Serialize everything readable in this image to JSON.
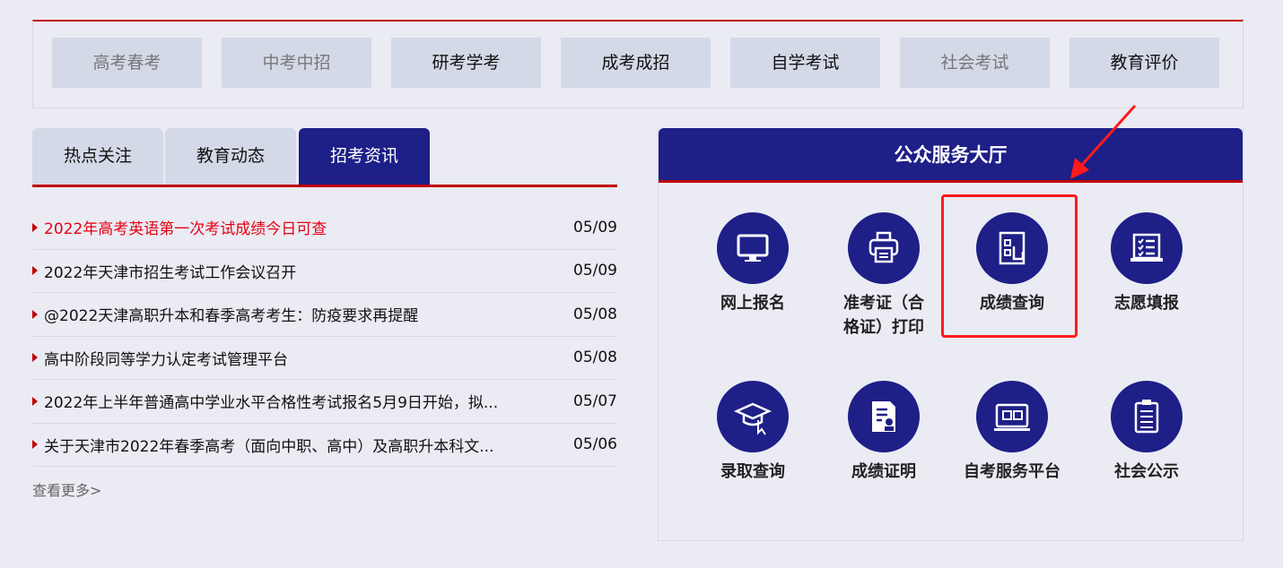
{
  "nav": {
    "items": [
      {
        "label": "高考春考",
        "dim": true
      },
      {
        "label": "中考中招",
        "dim": true
      },
      {
        "label": "研考学考",
        "dim": false
      },
      {
        "label": "成考成招",
        "dim": false
      },
      {
        "label": "自学考试",
        "dim": false
      },
      {
        "label": "社会考试",
        "dim": true
      },
      {
        "label": "教育评价",
        "dim": false
      }
    ]
  },
  "tabs": [
    {
      "label": "热点关注"
    },
    {
      "label": "教育动态"
    },
    {
      "label": "招考资讯",
      "active": true
    }
  ],
  "news": [
    {
      "title": "2022年高考英语第一次考试成绩今日可查",
      "date": "05/09",
      "highlight": true
    },
    {
      "title": "2022年天津市招生考试工作会议召开",
      "date": "05/09"
    },
    {
      "title": "@2022天津高职升本和春季高考考生：防疫要求再提醒",
      "date": "05/08"
    },
    {
      "title": "高中阶段同等学力认定考试管理平台",
      "date": "05/08"
    },
    {
      "title": "2022年上半年普通高中学业水平合格性考试报名5月9日开始，拟...",
      "date": "05/07"
    },
    {
      "title": "关于天津市2022年春季高考（面向中职、高中）及高职升本科文...",
      "date": "05/06"
    }
  ],
  "more_label": "查看更多>",
  "service": {
    "title": "公众服务大厅",
    "items": [
      {
        "label": "网上报名",
        "icon": "monitor-icon"
      },
      {
        "label": "准考证（合格证）打印",
        "icon": "printer-icon"
      },
      {
        "label": "成绩查询",
        "icon": "score-query-icon"
      },
      {
        "label": "志愿填报",
        "icon": "checklist-laptop-icon"
      },
      {
        "label": "录取查询",
        "icon": "graduation-cap-icon"
      },
      {
        "label": "成绩证明",
        "icon": "certificate-icon"
      },
      {
        "label": "自考服务平台",
        "icon": "online-platform-icon"
      },
      {
        "label": "社会公示",
        "icon": "clipboard-icon"
      }
    ]
  },
  "colors": {
    "primary": "#1e1f87",
    "accent": "#c00000",
    "highlight": "#ff1a1a"
  }
}
